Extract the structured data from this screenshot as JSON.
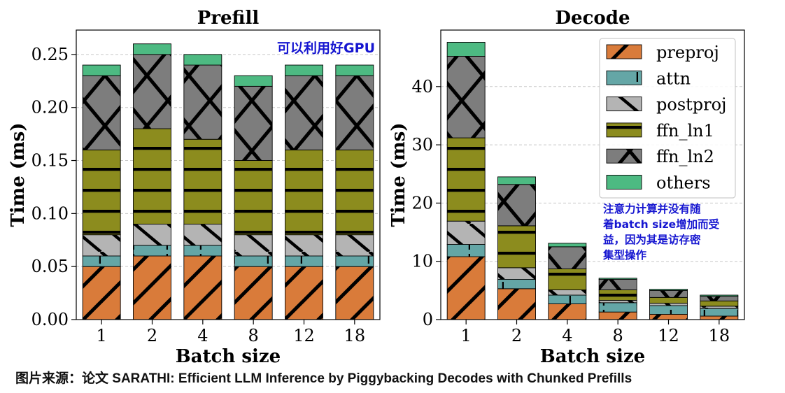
{
  "colors": {
    "preproj": "#d97b3a",
    "attn": "#64a6a6",
    "postproj": "#b4b4b4",
    "ffn_ln1": "#8c8c1e",
    "ffn_ln2": "#7d7d7d",
    "others": "#4dba82",
    "annotation": "#1515d0",
    "grid": "#c8c8c8"
  },
  "chart_data": [
    {
      "type": "bar",
      "stacked": true,
      "title": "Prefill",
      "xlabel": "Batch size",
      "ylabel": "Time (ms)",
      "categories": [
        "1",
        "2",
        "4",
        "8",
        "12",
        "18"
      ],
      "ylim": [
        0,
        0.273
      ],
      "yticks": [
        0,
        0.05,
        0.1,
        0.15,
        0.2,
        0.25
      ],
      "ytick_labels": [
        "0.00",
        "0.05",
        "0.10",
        "0.15",
        "0.20",
        "0.25"
      ],
      "grid": "horizontal-dashed",
      "series": [
        {
          "name": "preproj",
          "values": [
            0.05,
            0.06,
            0.06,
            0.05,
            0.05,
            0.05
          ]
        },
        {
          "name": "attn",
          "values": [
            0.01,
            0.01,
            0.01,
            0.01,
            0.01,
            0.01
          ]
        },
        {
          "name": "postproj",
          "values": [
            0.02,
            0.02,
            0.02,
            0.02,
            0.02,
            0.02
          ]
        },
        {
          "name": "ffn_ln1",
          "values": [
            0.08,
            0.09,
            0.08,
            0.07,
            0.08,
            0.08
          ]
        },
        {
          "name": "ffn_ln2",
          "values": [
            0.07,
            0.07,
            0.07,
            0.07,
            0.07,
            0.07
          ]
        },
        {
          "name": "others",
          "values": [
            0.01,
            0.01,
            0.01,
            0.01,
            0.01,
            0.01
          ]
        }
      ],
      "annotation": "可以利用好GPU"
    },
    {
      "type": "bar",
      "stacked": true,
      "title": "Decode",
      "xlabel": "Batch size",
      "ylabel": "Time (ms)",
      "categories": [
        "1",
        "2",
        "4",
        "8",
        "12",
        "18"
      ],
      "ylim": [
        0,
        49.7
      ],
      "yticks": [
        0,
        10,
        20,
        30,
        40
      ],
      "ytick_labels": [
        "0",
        "10",
        "20",
        "30",
        "40"
      ],
      "grid": "horizontal-dashed",
      "legend": "top-right",
      "series": [
        {
          "name": "preproj",
          "values": [
            10.8,
            5.3,
            2.7,
            1.3,
            0.9,
            0.6
          ]
        },
        {
          "name": "attn",
          "values": [
            2.1,
            1.6,
            1.5,
            1.6,
            1.5,
            1.3
          ]
        },
        {
          "name": "postproj",
          "values": [
            4.0,
            2.0,
            0.9,
            0.4,
            0.4,
            0.4
          ]
        },
        {
          "name": "ffn_ln1",
          "values": [
            14.3,
            7.2,
            3.6,
            1.8,
            1.0,
            0.9
          ]
        },
        {
          "name": "ffn_ln2",
          "values": [
            14.0,
            7.1,
            3.8,
            1.8,
            1.2,
            0.8
          ]
        },
        {
          "name": "others",
          "values": [
            2.4,
            1.3,
            0.6,
            0.2,
            0.2,
            0.2
          ]
        }
      ],
      "annotation": [
        "注意力计算并没有随",
        "着batch size增加而受",
        "益，因为其是访存密",
        "集型操作"
      ]
    }
  ],
  "caption": "图片来源：论文 SARATHI: Efficient LLM Inference by Piggybacking Decodes with Chunked Prefills"
}
